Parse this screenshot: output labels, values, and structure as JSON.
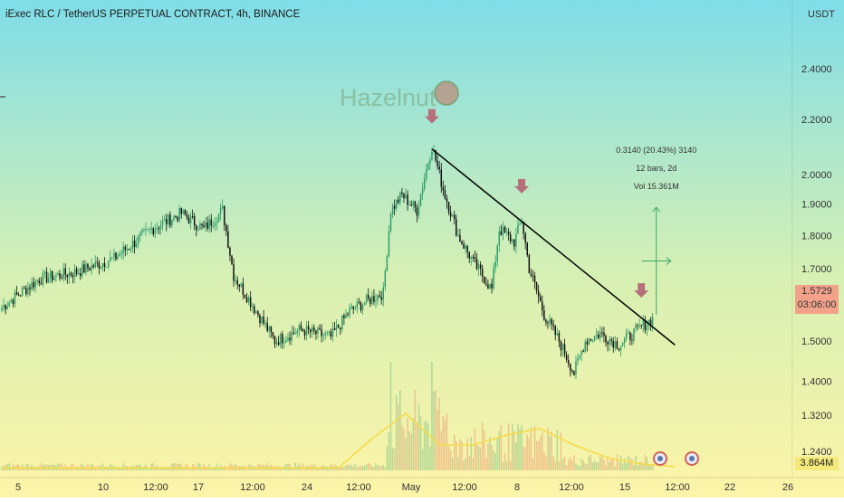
{
  "header": {
    "title": "iExec RLC / TetherUS PERPETUAL CONTRACT, 4h, BINANCE",
    "currency": "USDT"
  },
  "watermark": "Hazelnut",
  "price_tag": {
    "price": "1.5729",
    "countdown": "03:06:00"
  },
  "volume_tag": "3.864M",
  "measure": {
    "line1": "0.3140 (20.43%) 3140",
    "line2": "12 bars, 2d",
    "line3": "Vol 15.361M"
  },
  "colors": {
    "up": "#2e9e6a",
    "down": "#111111",
    "volume_ma": "#f4dc4a",
    "trendline": "#000000",
    "arrow_marker": "#b5707a",
    "measure": "#3aa86a",
    "bg_top": "#7fdde8",
    "bg_bottom": "#fdf4a8"
  },
  "chart_data": {
    "type": "candlestick",
    "title": "iExec RLC / TetherUS PERPETUAL CONTRACT, 4h, BINANCE",
    "y_axis": {
      "scale": "log",
      "ticks": [
        "2.4000",
        "2.2000",
        "2.0000",
        "1.9000",
        "1.8000",
        "1.7000",
        "1.6000",
        "1.5000",
        "1.4000",
        "1.3200",
        "1.2400"
      ],
      "ylim": [
        1.2,
        2.5
      ]
    },
    "x_axis": {
      "ticks": [
        "5",
        "10",
        "12:00",
        "17",
        "12:00",
        "24",
        "12:00",
        "May",
        "12:00",
        "8",
        "12:00",
        "15",
        "12:00",
        "22",
        "26"
      ]
    },
    "close_path": [
      {
        "i": 0,
        "close": 1.59
      },
      {
        "i": 20,
        "close": 1.67
      },
      {
        "i": 40,
        "close": 1.69
      },
      {
        "i": 60,
        "close": 1.73
      },
      {
        "i": 80,
        "close": 1.82
      },
      {
        "i": 96,
        "close": 1.87
      },
      {
        "i": 108,
        "close": 1.82
      },
      {
        "i": 118,
        "close": 1.88
      },
      {
        "i": 124,
        "close": 1.68
      },
      {
        "i": 136,
        "close": 1.58
      },
      {
        "i": 146,
        "close": 1.5
      },
      {
        "i": 160,
        "close": 1.53
      },
      {
        "i": 176,
        "close": 1.51
      },
      {
        "i": 186,
        "close": 1.58
      },
      {
        "i": 196,
        "close": 1.61
      },
      {
        "i": 204,
        "close": 1.63
      },
      {
        "i": 208,
        "close": 1.88
      },
      {
        "i": 214,
        "close": 1.93
      },
      {
        "i": 222,
        "close": 1.88
      },
      {
        "i": 230,
        "close": 2.1
      },
      {
        "i": 236,
        "close": 1.95
      },
      {
        "i": 244,
        "close": 1.8
      },
      {
        "i": 252,
        "close": 1.72
      },
      {
        "i": 262,
        "close": 1.64
      },
      {
        "i": 266,
        "close": 1.82
      },
      {
        "i": 274,
        "close": 1.78
      },
      {
        "i": 278,
        "close": 1.85
      },
      {
        "i": 282,
        "close": 1.7
      },
      {
        "i": 290,
        "close": 1.57
      },
      {
        "i": 298,
        "close": 1.5
      },
      {
        "i": 306,
        "close": 1.42
      },
      {
        "i": 312,
        "close": 1.5
      },
      {
        "i": 320,
        "close": 1.52
      },
      {
        "i": 330,
        "close": 1.49
      },
      {
        "i": 340,
        "close": 1.53
      },
      {
        "i": 348,
        "close": 1.56
      }
    ],
    "trendline": [
      {
        "i": 230,
        "price": 2.09
      },
      {
        "i": 360,
        "price": 1.49
      }
    ],
    "markers_at_bar": [
      230,
      278,
      342
    ],
    "measure_from_bar": 350,
    "measure_range": [
      1.57,
      1.89
    ],
    "volume": {
      "label": "3.864M",
      "ma_shape": [
        0.02,
        0.02,
        0.02,
        0.02,
        0.02,
        0.02,
        0.02,
        0.02,
        0.02,
        0.02,
        0.02,
        0.25,
        0.45,
        0.2,
        0.2,
        0.28,
        0.33,
        0.2,
        0.1,
        0.05,
        0.03
      ]
    }
  }
}
